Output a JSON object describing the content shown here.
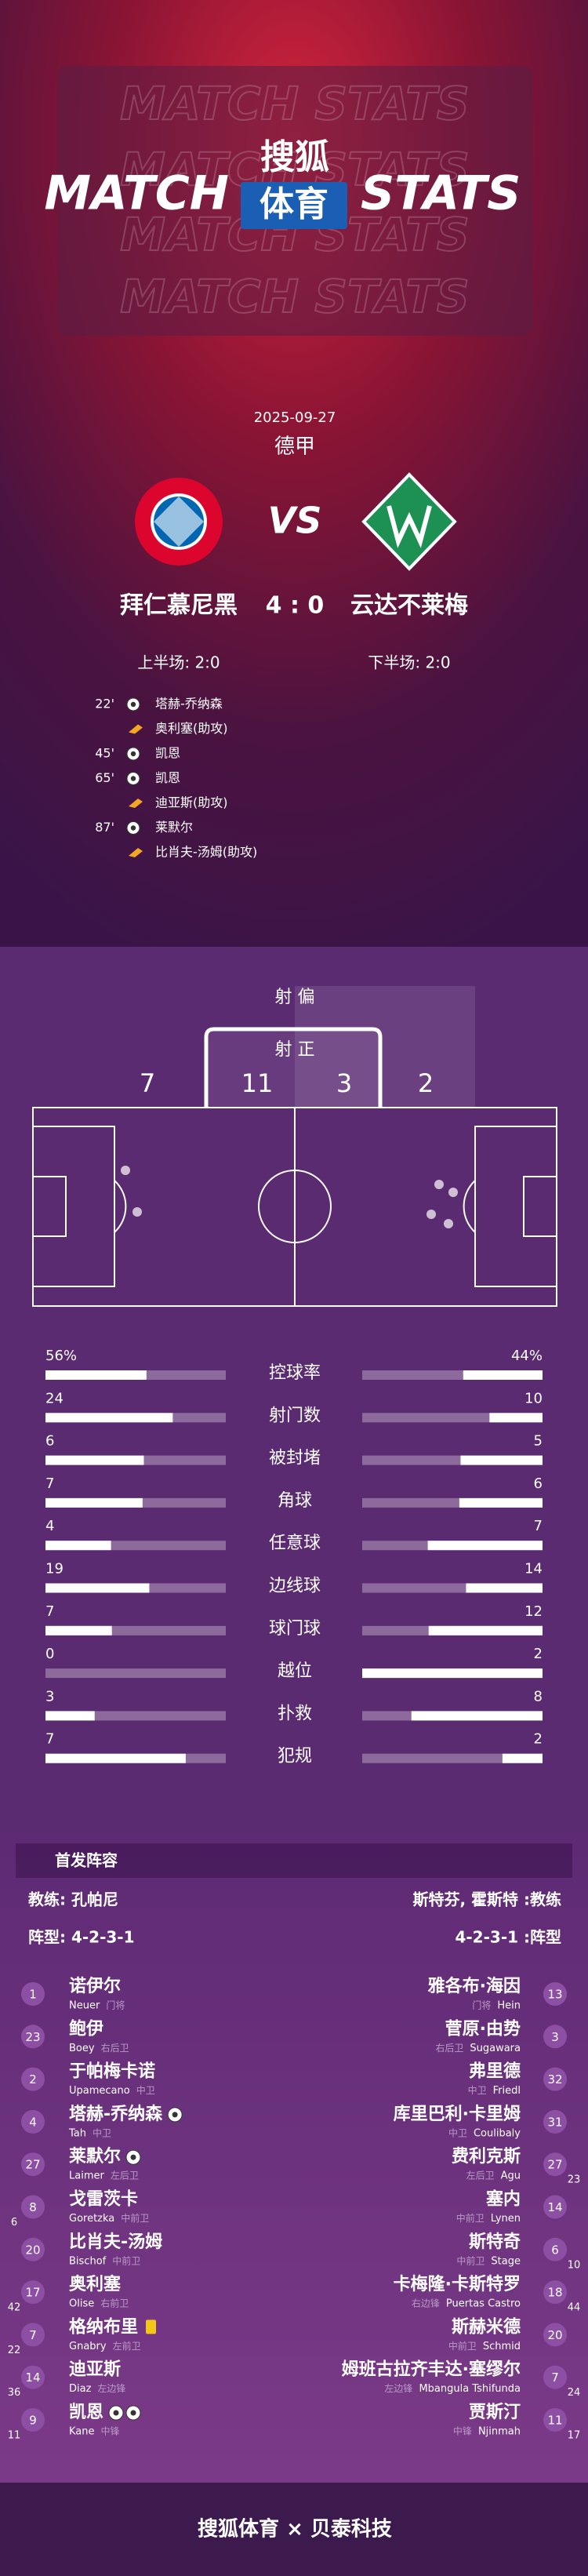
{
  "header": {
    "watermark": "MATCH STATS",
    "left": "MATCH",
    "brand": "搜狐",
    "brand_sub": "体育",
    "right": "STATS"
  },
  "match": {
    "date": "2025-09-27",
    "league": "德甲",
    "vs": "VS",
    "home": "拜仁慕尼黑",
    "score": "4 : 0",
    "away": "云达不莱梅",
    "home_half": "上半场: 2:0",
    "away_half": "下半场: 2:0"
  },
  "events": [
    {
      "minute": "22'",
      "scorer": "塔赫-乔纳森",
      "assist": "奥利塞(助攻)"
    },
    {
      "minute": "45'",
      "scorer": "凯恩"
    },
    {
      "minute": "65'",
      "scorer": "凯恩",
      "assist": "迪亚斯(助攻)"
    },
    {
      "minute": "87'",
      "scorer": "莱默尔",
      "assist": "比肖夫-汤姆(助攻)"
    }
  ],
  "shots": {
    "off_target_label": "射 偏",
    "on_target_label": "射 正",
    "home_off": 7,
    "home_on": 11,
    "away_on": 3,
    "away_off": 2
  },
  "stats": {
    "rows": [
      {
        "label": "控球率",
        "home": 56,
        "away": 44,
        "home_label": "56%",
        "away_label": "44%"
      },
      {
        "label": "射门数",
        "home": 24,
        "away": 10
      },
      {
        "label": "被封堵",
        "home": 6,
        "away": 5
      },
      {
        "label": "角球",
        "home": 7,
        "away": 6
      },
      {
        "label": "任意球",
        "home": 4,
        "away": 7
      },
      {
        "label": "边线球",
        "home": 19,
        "away": 14
      },
      {
        "label": "球门球",
        "home": 7,
        "away": 12
      },
      {
        "label": "越位",
        "home": 0,
        "away": 2
      },
      {
        "label": "扑救",
        "home": 3,
        "away": 8
      },
      {
        "label": "犯规",
        "home": 7,
        "away": 2
      }
    ]
  },
  "lineup": {
    "title": "首发阵容",
    "home_coach": "教练: 孔帕尼",
    "away_coach": "斯特芬, 霍斯特 :教练",
    "home_formation": "阵型: 4-2-3-1",
    "away_formation": "4-2-3-1 :阵型",
    "home": [
      {
        "number": 1,
        "name": "诺伊尔",
        "en": "Neuer",
        "pos": "门将"
      },
      {
        "number": 23,
        "name": "鲍伊",
        "en": "Boey",
        "pos": "右后卫"
      },
      {
        "number": 2,
        "name": "于帕梅卡诺",
        "en": "Upamecano",
        "pos": "中卫"
      },
      {
        "number": 4,
        "name": "塔赫-乔纳森",
        "en": "Tah",
        "pos": "中卫",
        "goals": 1
      },
      {
        "number": 27,
        "name": "莱默尔",
        "en": "Laimer",
        "pos": "左后卫",
        "goals": 1
      },
      {
        "number": 8,
        "sub": 6,
        "name": "戈雷茨卡",
        "en": "Goretzka",
        "pos": "中前卫"
      },
      {
        "number": 20,
        "name": "比肖夫-汤姆",
        "en": "Bischof",
        "pos": "中前卫"
      },
      {
        "number": 17,
        "sub": 42,
        "name": "奥利塞",
        "en": "Olise",
        "pos": "右前卫"
      },
      {
        "number": 7,
        "sub": 22,
        "name": "格纳布里",
        "en": "Gnabry",
        "pos": "左前卫",
        "yellow_cards": 1
      },
      {
        "number": 14,
        "sub": 36,
        "name": "迪亚斯",
        "en": "Diaz",
        "pos": "左边锋"
      },
      {
        "number": 9,
        "sub": 11,
        "name": "凯恩",
        "en": "Kane",
        "pos": "中锋",
        "goals": 2
      }
    ],
    "away": [
      {
        "number": 13,
        "name": "雅各布·海因",
        "en": "Hein",
        "pos": "门将"
      },
      {
        "number": 3,
        "name": "菅原·由势",
        "en": "Sugawara",
        "pos": "右后卫"
      },
      {
        "number": 32,
        "name": "弗里德",
        "en": "Friedl",
        "pos": "中卫"
      },
      {
        "number": 31,
        "name": "库里巴利·卡里姆",
        "en": "Coulibaly",
        "pos": "中卫"
      },
      {
        "number": 27,
        "sub": 23,
        "name": "费利克斯",
        "en": "Agu",
        "pos": "左后卫"
      },
      {
        "number": 14,
        "name": "塞内",
        "en": "Lynen",
        "pos": "中前卫"
      },
      {
        "number": 6,
        "sub": 10,
        "name": "斯特奇",
        "en": "Stage",
        "pos": "中前卫"
      },
      {
        "number": 18,
        "sub": 44,
        "name": "卡梅隆·卡斯特罗",
        "en": "Puertas Castro",
        "pos": "右边锋"
      },
      {
        "number": 20,
        "name": "斯赫米德",
        "en": "Schmid",
        "pos": "中前卫"
      },
      {
        "number": 7,
        "sub": 24,
        "name": "姆班古拉齐丰达·塞缪尔",
        "en": "Mbangula Tshifunda",
        "pos": "左边锋"
      },
      {
        "number": 11,
        "sub": 17,
        "name": "贾斯汀",
        "en": "Njinmah",
        "pos": "中锋"
      }
    ]
  },
  "footer": "搜狐体育 × 贝泰科技"
}
